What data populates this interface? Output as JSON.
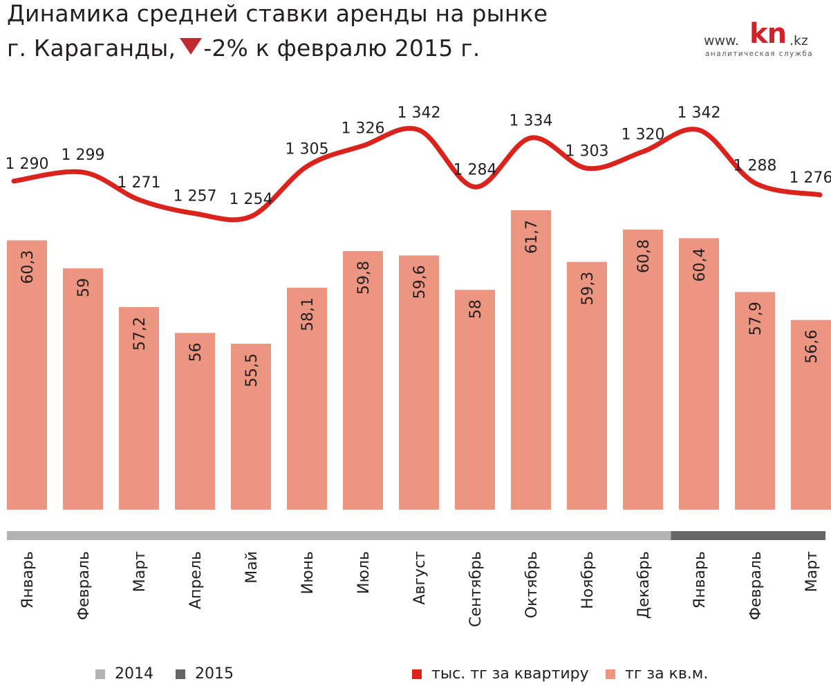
{
  "header": {
    "title_line1": "Динамика средней ставки аренды на рынке",
    "title_line2_prefix": "г. Караганды,",
    "title_line2_suffix": "-2% к февралю 2015 г."
  },
  "logo": {
    "www": "www.",
    "kn": "kn",
    "kz": ".kz",
    "subtitle": "аналитическая служба"
  },
  "colors": {
    "line": "#d9231c",
    "bars": "#ec9580",
    "year2014": "#b3b3b3",
    "year2015": "#666666",
    "down_marker": "#c0292e"
  },
  "chart_data": {
    "type": "bar+line",
    "categories": [
      "Январь",
      "Февраль",
      "Март",
      "Апрель",
      "Май",
      "Июнь",
      "Июль",
      "Август",
      "Сентябрь",
      "Октябрь",
      "Ноябрь",
      "Декабрь",
      "Январь",
      "Февраль",
      "Март"
    ],
    "series": [
      {
        "name": "тг за кв.м.",
        "type": "bar",
        "values": [
          60.3,
          59,
          57.2,
          56,
          55.5,
          58.1,
          59.8,
          59.6,
          58,
          61.7,
          59.3,
          60.8,
          60.4,
          57.9,
          56.6
        ],
        "labels": [
          "60,3",
          "59",
          "57,2",
          "56",
          "55,5",
          "58,1",
          "59,8",
          "59,6",
          "58",
          "61,7",
          "59,3",
          "60,8",
          "60,4",
          "57,9",
          "56,6"
        ]
      },
      {
        "name": "тыс. тг за квартиру",
        "type": "line",
        "values": [
          1290,
          1299,
          1271,
          1257,
          1254,
          1305,
          1326,
          1342,
          1284,
          1334,
          1303,
          1320,
          1342,
          1288,
          1276
        ],
        "labels": [
          "1 290",
          "1 299",
          "1 271",
          "1 257",
          "1 254",
          "1 305",
          "1 326",
          "1 342",
          "1 284",
          "1 334",
          "1 303",
          "1 320",
          "1 342",
          "1 288",
          "1 276"
        ]
      }
    ],
    "years": [
      {
        "label": "2014",
        "months": 12
      },
      {
        "label": "2015",
        "months": 3
      }
    ],
    "legend": {
      "year_2014": "2014",
      "year_2015": "2015",
      "line": "тыс. тг за квартиру",
      "bars": "тг за кв.м."
    }
  }
}
